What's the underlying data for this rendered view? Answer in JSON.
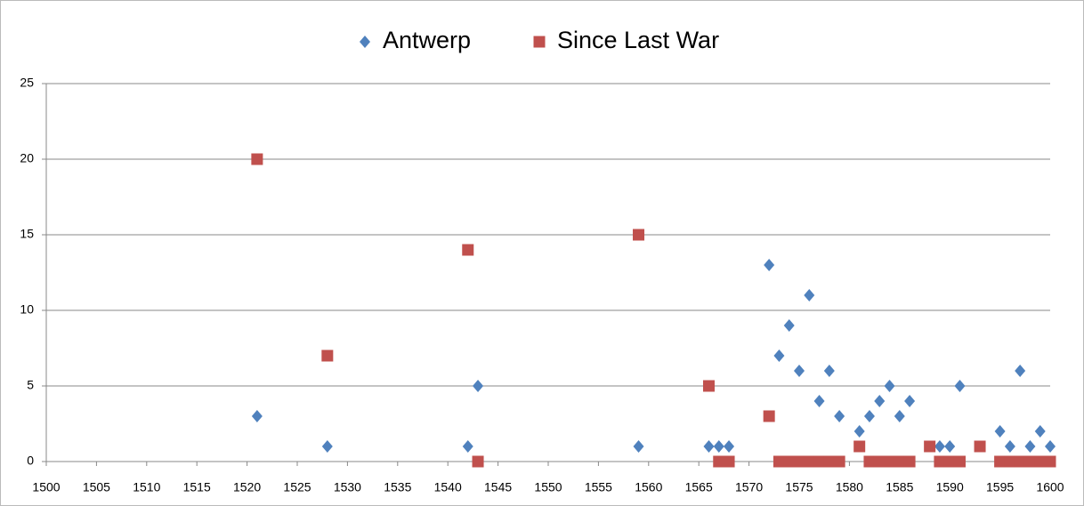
{
  "chart_data": {
    "type": "scatter",
    "series": [
      {
        "name": "Antwerp",
        "color": "#4f81bd",
        "marker": "diamond",
        "x": [
          1521,
          1528,
          1542,
          1543,
          1559,
          1566,
          1567,
          1568,
          1572,
          1573,
          1574,
          1575,
          1576,
          1577,
          1578,
          1579,
          1581,
          1582,
          1583,
          1584,
          1585,
          1586,
          1589,
          1590,
          1591,
          1595,
          1596,
          1597,
          1598,
          1599,
          1600
        ],
        "values": [
          3,
          1,
          1,
          5,
          1,
          1,
          1,
          1,
          13,
          7,
          9,
          6,
          11,
          4,
          6,
          3,
          2,
          3,
          4,
          5,
          3,
          4,
          1,
          1,
          5,
          2,
          1,
          6,
          1,
          2,
          1
        ]
      },
      {
        "name": "Since Last War",
        "color": "#c0504d",
        "marker": "square",
        "x": [
          1521,
          1528,
          1542,
          1543,
          1559,
          1566,
          1567,
          1568,
          1572,
          1573,
          1574,
          1575,
          1576,
          1577,
          1578,
          1579,
          1581,
          1582,
          1583,
          1584,
          1585,
          1586,
          1588,
          1589,
          1590,
          1591,
          1593,
          1595,
          1596,
          1597,
          1598,
          1599,
          1600
        ],
        "values": [
          20,
          7,
          14,
          0,
          15,
          5,
          0,
          0,
          3,
          0,
          0,
          0,
          0,
          0,
          0,
          0,
          1,
          0,
          0,
          0,
          0,
          0,
          1,
          0,
          0,
          0,
          1,
          0,
          0,
          0,
          0,
          0,
          0
        ]
      }
    ],
    "xlim": [
      1500,
      1600
    ],
    "xticks": [
      1500,
      1505,
      1510,
      1515,
      1520,
      1525,
      1530,
      1535,
      1540,
      1545,
      1550,
      1555,
      1560,
      1565,
      1570,
      1575,
      1580,
      1585,
      1590,
      1595,
      1600
    ],
    "ylim": [
      0,
      25
    ],
    "yticks": [
      0,
      5,
      10,
      15,
      20,
      25
    ],
    "grid": true,
    "legend": "top"
  }
}
